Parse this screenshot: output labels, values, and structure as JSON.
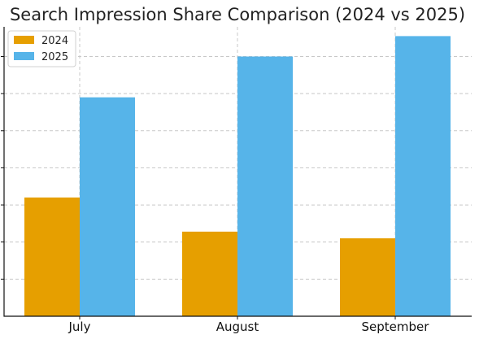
{
  "chart_data": {
    "type": "bar",
    "title": "Search Impression Share Comparison (2024 vs 2025)",
    "xlabel": "",
    "ylabel": "",
    "categories": [
      "July",
      "August",
      "September"
    ],
    "series": [
      {
        "name": "2024",
        "color": "#E69F00",
        "values": [
          32,
          22.8,
          21
        ]
      },
      {
        "name": "2025",
        "color": "#56B4E9",
        "values": [
          59,
          70,
          75.5
        ]
      }
    ],
    "ylim": [
      0,
      78
    ],
    "y_gridlines": [
      10,
      20,
      30,
      40,
      50,
      60,
      70
    ],
    "grid": true,
    "y_tick_labels_visible": false,
    "legend_position": "top-left"
  }
}
